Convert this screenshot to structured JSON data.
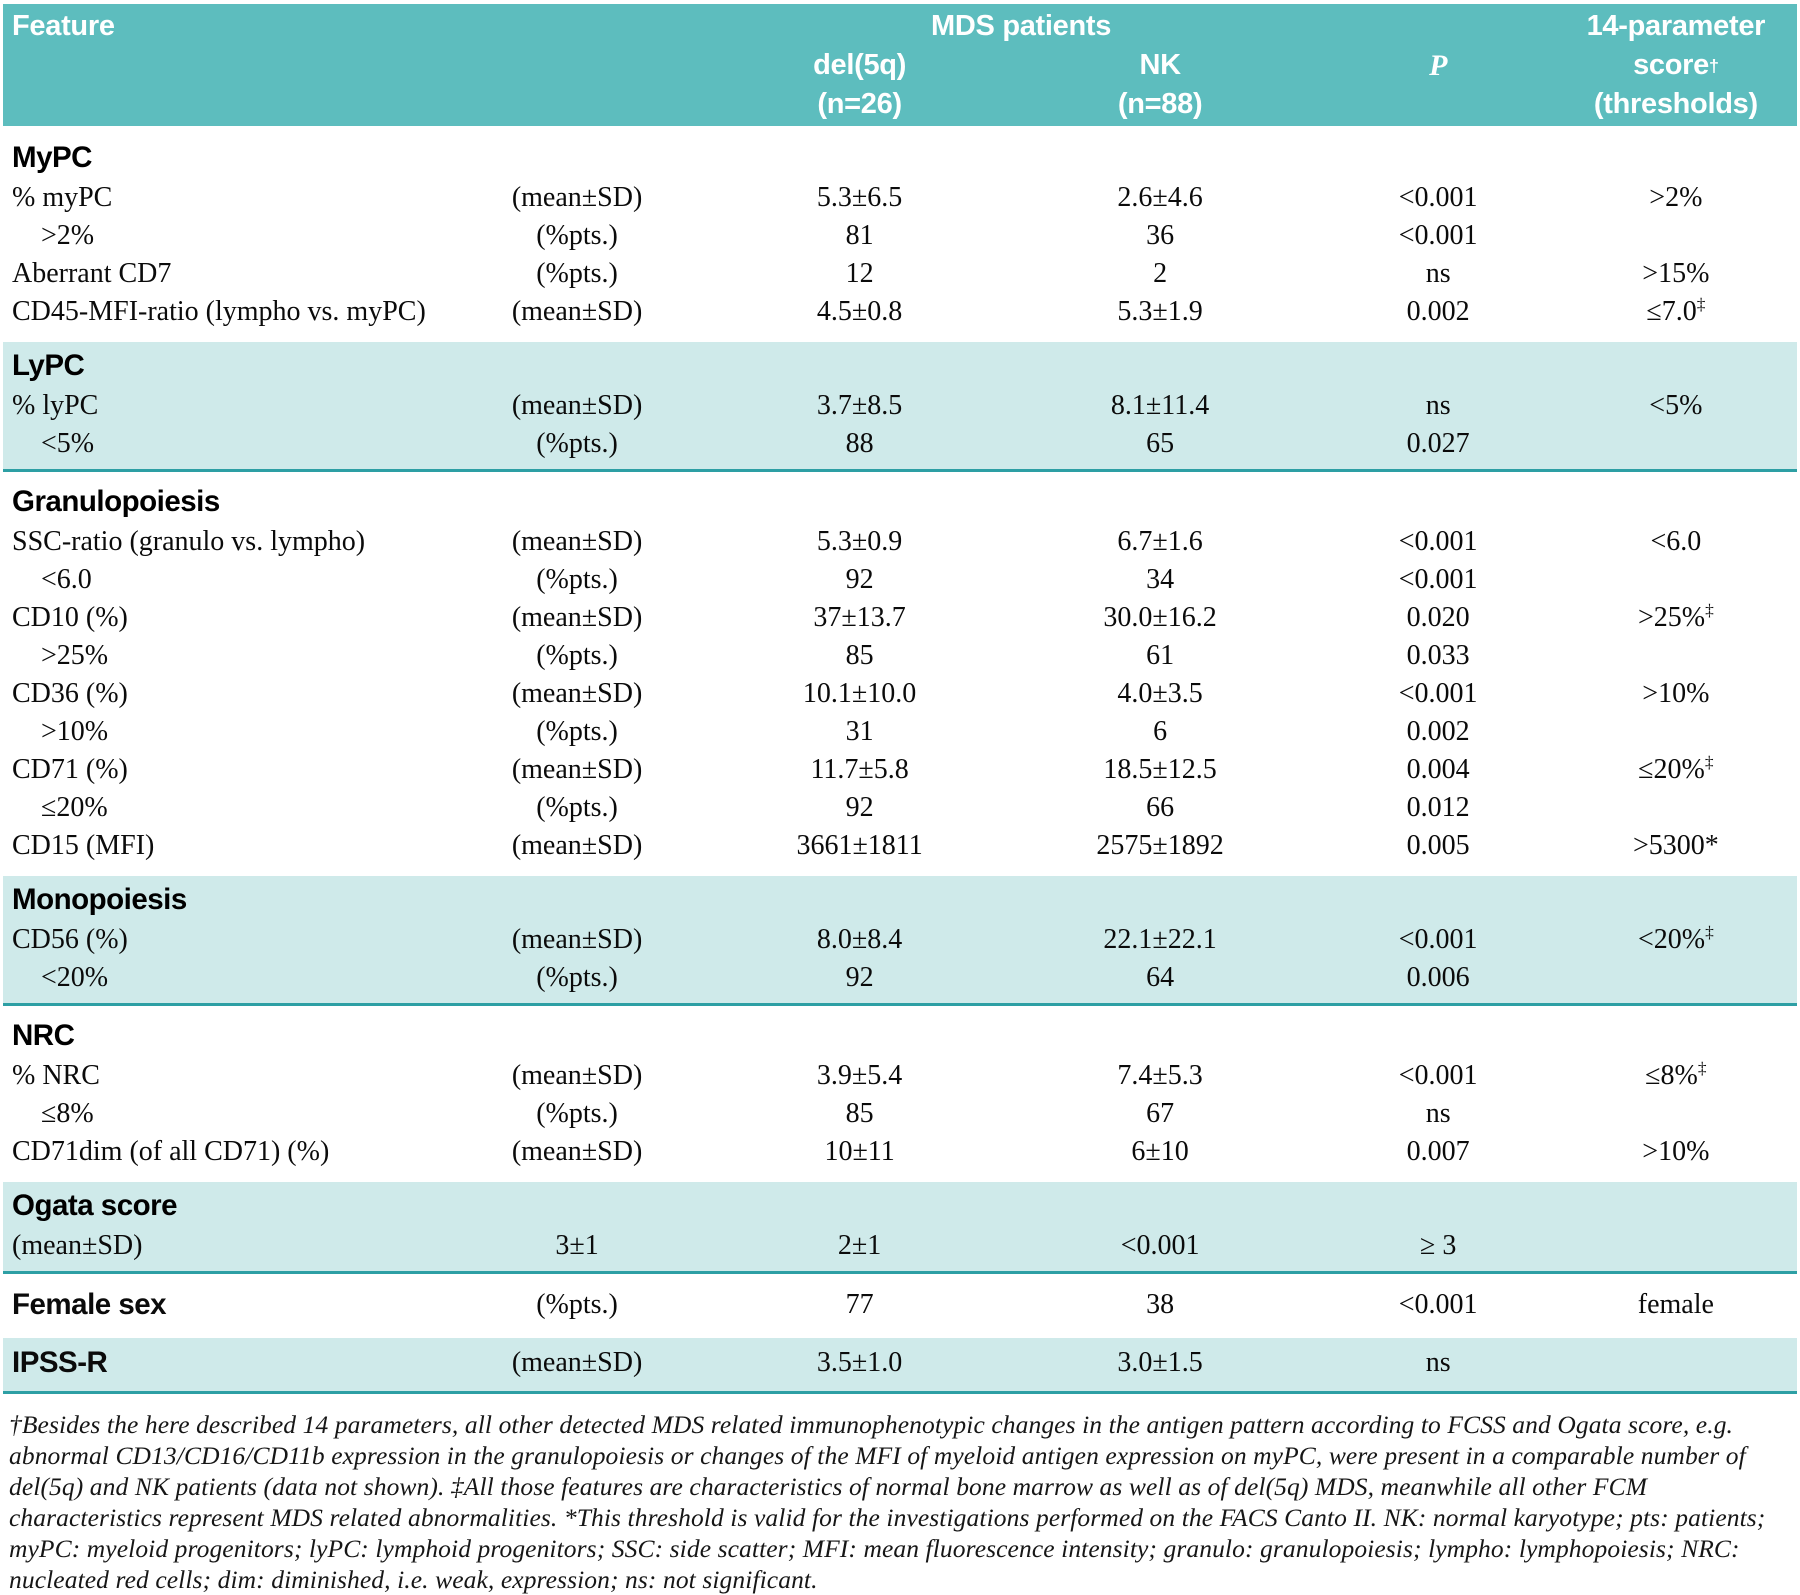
{
  "colors": {
    "header_teal": "#5dbdbe",
    "section_teal": "#cfeaea",
    "divider_teal": "#2d9fa4"
  },
  "header": {
    "feature": "Feature",
    "group": "MDS patients",
    "del5q_line1": "del(5q)",
    "del5q_line2": "(n=26)",
    "nk_line1": "NK",
    "nk_line2": "(n=88)",
    "p": "P",
    "score_line1": "14-parameter",
    "score_line2": "score",
    "score_sup": "†",
    "score_line3": "(thresholds)"
  },
  "sections": [
    {
      "id": "mypc",
      "shade": "white",
      "title": "MyPC",
      "rows": [
        {
          "label": "% myPC",
          "indent": false,
          "stat": "(mean±SD)",
          "del5q": "5.3±6.5",
          "nk": "2.6±4.6",
          "p": "<0.001",
          "thr": ">2%",
          "thr_sup": ""
        },
        {
          "label": ">2%",
          "indent": true,
          "stat": "(%pts.)",
          "del5q": "81",
          "nk": "36",
          "p": "<0.001",
          "thr": "",
          "thr_sup": ""
        },
        {
          "label": "Aberrant CD7",
          "indent": false,
          "stat": "(%pts.)",
          "del5q": "12",
          "nk": "2",
          "p": "ns",
          "thr": ">15%",
          "thr_sup": ""
        },
        {
          "label": "CD45-MFI-ratio (lympho vs. myPC)",
          "indent": false,
          "stat": "(mean±SD)",
          "del5q": "4.5±0.8",
          "nk": "5.3±1.9",
          "p": "0.002",
          "thr": "≤7.0",
          "thr_sup": "‡"
        }
      ]
    },
    {
      "id": "lypc",
      "shade": "teal",
      "title": "LyPC",
      "rows": [
        {
          "label": "% lyPC",
          "indent": false,
          "stat": "(mean±SD)",
          "del5q": "3.7±8.5",
          "nk": "8.1±11.4",
          "p": "ns",
          "thr": "<5%",
          "thr_sup": ""
        },
        {
          "label": "<5%",
          "indent": true,
          "stat": "(%pts.)",
          "del5q": "88",
          "nk": "65",
          "p": "0.027",
          "thr": "",
          "thr_sup": ""
        }
      ]
    },
    {
      "id": "granulopoiesis",
      "shade": "white",
      "title": "Granulopoiesis",
      "rows": [
        {
          "label": "SSC-ratio (granulo vs. lympho)",
          "indent": false,
          "stat": "(mean±SD)",
          "del5q": "5.3±0.9",
          "nk": "6.7±1.6",
          "p": "<0.001",
          "thr": "<6.0",
          "thr_sup": ""
        },
        {
          "label": "<6.0",
          "indent": true,
          "stat": "(%pts.)",
          "del5q": "92",
          "nk": "34",
          "p": "<0.001",
          "thr": "",
          "thr_sup": ""
        },
        {
          "label": "CD10 (%)",
          "indent": false,
          "stat": "(mean±SD)",
          "del5q": "37±13.7",
          "nk": "30.0±16.2",
          "p": "0.020",
          "thr": ">25%",
          "thr_sup": "‡"
        },
        {
          "label": ">25%",
          "indent": true,
          "stat": "(%pts.)",
          "del5q": "85",
          "nk": "61",
          "p": "0.033",
          "thr": "",
          "thr_sup": ""
        },
        {
          "label": "CD36 (%)",
          "indent": false,
          "stat": "(mean±SD)",
          "del5q": "10.1±10.0",
          "nk": "4.0±3.5",
          "p": "<0.001",
          "thr": ">10%",
          "thr_sup": ""
        },
        {
          "label": ">10%",
          "indent": true,
          "stat": "(%pts.)",
          "del5q": "31",
          "nk": "6",
          "p": "0.002",
          "thr": "",
          "thr_sup": ""
        },
        {
          "label": "CD71 (%)",
          "indent": false,
          "stat": "(mean±SD)",
          "del5q": "11.7±5.8",
          "nk": "18.5±12.5",
          "p": "0.004",
          "thr": "≤20%",
          "thr_sup": "‡"
        },
        {
          "label": "≤20%",
          "indent": true,
          "stat": "(%pts.)",
          "del5q": "92",
          "nk": "66",
          "p": "0.012",
          "thr": "",
          "thr_sup": ""
        },
        {
          "label": "CD15 (MFI)",
          "indent": false,
          "stat": "(mean±SD)",
          "del5q": "3661±1811",
          "nk": "2575±1892",
          "p": "0.005",
          "thr": ">5300*",
          "thr_sup": ""
        }
      ]
    },
    {
      "id": "monopoiesis",
      "shade": "teal",
      "title": "Monopoiesis",
      "rows": [
        {
          "label": "CD56 (%)",
          "indent": false,
          "stat": "(mean±SD)",
          "del5q": "8.0±8.4",
          "nk": "22.1±22.1",
          "p": "<0.001",
          "thr": "<20%",
          "thr_sup": "‡"
        },
        {
          "label": "<20%",
          "indent": true,
          "stat": "(%pts.)",
          "del5q": "92",
          "nk": "64",
          "p": "0.006",
          "thr": "",
          "thr_sup": ""
        }
      ]
    },
    {
      "id": "nrc",
      "shade": "white",
      "title": "NRC",
      "rows": [
        {
          "label": "% NRC",
          "indent": false,
          "stat": "(mean±SD)",
          "del5q": "3.9±5.4",
          "nk": "7.4±5.3",
          "p": "<0.001",
          "thr": "≤8%",
          "thr_sup": "‡"
        },
        {
          "label": "≤8%",
          "indent": true,
          "stat": "(%pts.)",
          "del5q": "85",
          "nk": "67",
          "p": "ns",
          "thr": "",
          "thr_sup": ""
        },
        {
          "label": "CD71dim (of all CD71) (%)",
          "indent": false,
          "stat": "(mean±SD)",
          "del5q": "10±11",
          "nk": "6±10",
          "p": "0.007",
          "thr": ">10%",
          "thr_sup": ""
        }
      ]
    },
    {
      "id": "ogata-score",
      "shade": "teal",
      "title": "Ogata score",
      "rows": [
        {
          "label": "(mean±SD)",
          "indent": false,
          "stat": "3±1",
          "del5q": "2±1",
          "nk": "<0.001",
          "p": "≥ 3",
          "thr": "",
          "thr_sup": ""
        }
      ]
    },
    {
      "id": "female-sex",
      "shade": "white",
      "title": null,
      "rows": [
        {
          "label": "Female sex",
          "bold": true,
          "indent": false,
          "stat": "(%pts.)",
          "del5q": "77",
          "nk": "38",
          "p": "<0.001",
          "thr": "female",
          "thr_sup": ""
        }
      ]
    },
    {
      "id": "ipss-r",
      "shade": "teal",
      "title": null,
      "rows": [
        {
          "label": "IPSS-R",
          "bold": true,
          "indent": false,
          "stat": "(mean±SD)",
          "del5q": "3.5±1.0",
          "nk": "3.0±1.5",
          "p": "ns",
          "thr": "",
          "thr_sup": ""
        }
      ]
    }
  ],
  "footnote": "†Besides the here described 14 parameters, all other detected MDS related immunophenotypic changes in the antigen pattern according to FCSS and Ogata score, e.g. abnormal CD13/CD16/CD11b expression in the granulopoiesis or changes of the MFI of myeloid antigen expression on myPC, were present in a comparable number of del(5q) and NK patients (data not shown). ‡All those features are characteristics of normal bone marrow as well as of del(5q) MDS, meanwhile all other FCM characteristics represent MDS related abnormalities. *This threshold is valid for the investigations performed on the FACS Canto II. NK: normal karyotype; pts: patients; myPC: myeloid progenitors; lyPC: lymphoid progenitors; SSC: side scatter; MFI: mean fluorescence intensity; granulo: granulopoiesis; lympho: lymphopoiesis; NRC: nucleated red cells; dim: diminished, i.e. weak, expression; ns: not significant."
}
